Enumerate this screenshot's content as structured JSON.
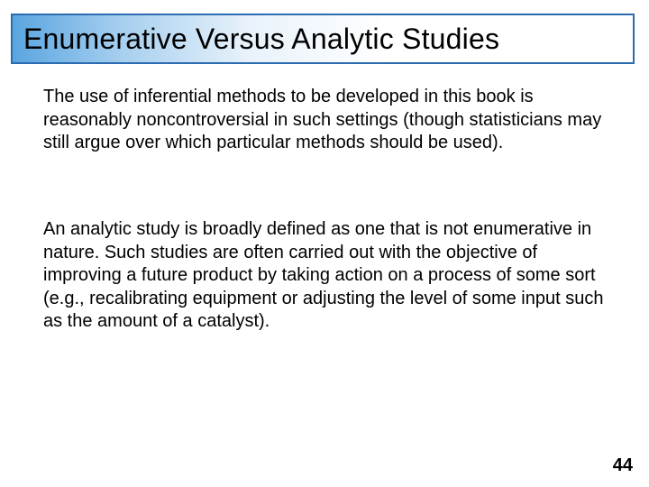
{
  "slide": {
    "title": "Enumerative Versus Analytic Studies",
    "title_fontsize": 32,
    "title_border_color": "#2d6cb0",
    "title_gradient_start": "#5aa5e0",
    "title_gradient_end": "#ffffff",
    "paragraphs": [
      "The use of inferential methods to be developed in this book is reasonably noncontroversial in such settings (though statisticians may still argue over which particular methods should be used).",
      "An analytic study is broadly defined as one that is not enumerative in nature. Such studies are often carried out with the objective of improving a future product by taking action on a process of some sort (e.g., recalibrating equipment or adjusting the level of some input such as the amount of a catalyst)."
    ],
    "body_fontsize": 20,
    "text_color": "#000000",
    "background_color": "#ffffff",
    "page_number": "44"
  }
}
